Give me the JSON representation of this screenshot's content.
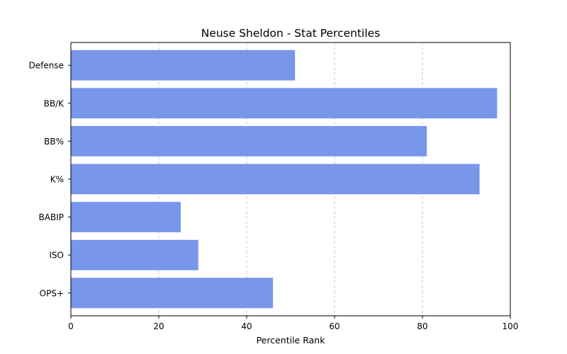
{
  "chart_data": {
    "type": "bar",
    "orientation": "horizontal",
    "title": "Neuse Sheldon - Stat Percentiles",
    "xlabel": "Percentile Rank",
    "ylabel": "",
    "xlim": [
      0,
      100
    ],
    "xticks": [
      "0",
      "20",
      "40",
      "60",
      "80",
      "100"
    ],
    "categories": [
      "OPS+",
      "ISO",
      "BABIP",
      "K%",
      "BB%",
      "BB/K",
      "Defense"
    ],
    "values": [
      46,
      29,
      25,
      93,
      81,
      97,
      51
    ],
    "bar_color": "#7896ea",
    "grid": "x-dashed",
    "legend": "none"
  }
}
